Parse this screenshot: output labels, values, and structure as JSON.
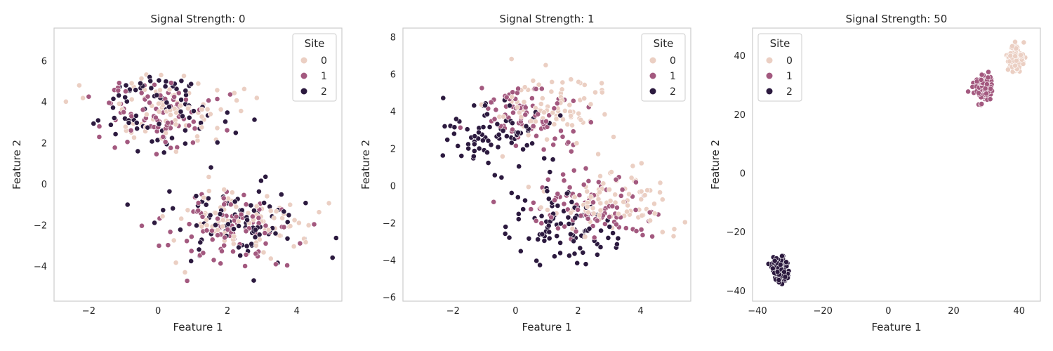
{
  "figure": {
    "legend_title": "Site",
    "site_colors": {
      "0": "#ebcfc3",
      "1": "#a3597f",
      "2": "#2c1a3f"
    },
    "grid_color": "#808080"
  },
  "chart_data": [
    {
      "type": "scatter",
      "title": "Signal Strength: 0",
      "xlabel": "Feature 1",
      "ylabel": "Feature 2",
      "xlim": [
        -3.0,
        5.3
      ],
      "ylim": [
        -5.7,
        7.6
      ],
      "xticks": [
        -2,
        0,
        2,
        4
      ],
      "yticks": [
        -4,
        -2,
        0,
        2,
        4,
        6
      ],
      "xtick_labels": [
        "−2",
        "0",
        "2",
        "4"
      ],
      "ytick_labels": [
        "−4",
        "−2",
        "0",
        "2",
        "4",
        "6"
      ],
      "grid": {
        "x": "solid-light",
        "y": "dashed"
      },
      "legend": {
        "title": "Site",
        "entries": [
          "0",
          "1",
          "2"
        ],
        "placement": "top-right"
      },
      "clusters": [
        {
          "site": "0",
          "center": [
            0.3,
            3.5
          ],
          "spread": [
            0.9,
            0.9
          ],
          "n": 80
        },
        {
          "site": "1",
          "center": [
            -0.1,
            3.3
          ],
          "spread": [
            0.9,
            0.9
          ],
          "n": 80
        },
        {
          "site": "2",
          "center": [
            0.1,
            3.6
          ],
          "spread": [
            0.9,
            0.9
          ],
          "n": 80
        },
        {
          "site": "0",
          "center": [
            2.2,
            -1.8
          ],
          "spread": [
            1.0,
            0.9
          ],
          "n": 90
        },
        {
          "site": "1",
          "center": [
            2.0,
            -2.1
          ],
          "spread": [
            1.0,
            0.9
          ],
          "n": 90
        },
        {
          "site": "2",
          "center": [
            2.1,
            -1.7
          ],
          "spread": [
            1.0,
            0.9
          ],
          "n": 90
        }
      ]
    },
    {
      "type": "scatter",
      "title": "Signal Strength: 1",
      "xlabel": "Feature 1",
      "ylabel": "Feature 2",
      "xlim": [
        -3.6,
        5.6
      ],
      "ylim": [
        -6.2,
        8.5
      ],
      "xticks": [
        -2,
        0,
        2,
        4
      ],
      "yticks": [
        -6,
        -4,
        -2,
        0,
        2,
        4,
        6,
        8
      ],
      "xtick_labels": [
        "−2",
        "0",
        "2",
        "4"
      ],
      "ytick_labels": [
        "−6",
        "−4",
        "−2",
        "0",
        "2",
        "4",
        "6",
        "8"
      ],
      "grid": {
        "x": "solid-light",
        "y": "dashed"
      },
      "legend": {
        "title": "Site",
        "entries": [
          "0",
          "1",
          "2"
        ],
        "placement": "top-right"
      },
      "clusters": [
        {
          "site": "0",
          "center": [
            1.2,
            4.3
          ],
          "spread": [
            0.9,
            0.9
          ],
          "n": 80
        },
        {
          "site": "1",
          "center": [
            0.3,
            3.7
          ],
          "spread": [
            0.9,
            0.9
          ],
          "n": 80
        },
        {
          "site": "2",
          "center": [
            -0.8,
            2.8
          ],
          "spread": [
            0.9,
            1.0
          ],
          "n": 80
        },
        {
          "site": "0",
          "center": [
            3.1,
            -0.8
          ],
          "spread": [
            1.0,
            0.8
          ],
          "n": 90
        },
        {
          "site": "1",
          "center": [
            2.5,
            -1.3
          ],
          "spread": [
            1.0,
            0.9
          ],
          "n": 90
        },
        {
          "site": "2",
          "center": [
            1.4,
            -2.3
          ],
          "spread": [
            1.0,
            1.0
          ],
          "n": 90
        }
      ]
    },
    {
      "type": "scatter",
      "title": "Signal Strength: 50",
      "xlabel": "Feature 1",
      "ylabel": "Feature 2",
      "xlim": [
        -41.5,
        46.5
      ],
      "ylim": [
        -43.5,
        49.5
      ],
      "xticks": [
        -40,
        -20,
        0,
        20,
        40
      ],
      "yticks": [
        -40,
        -20,
        0,
        20,
        40
      ],
      "xtick_labels": [
        "−40",
        "−20",
        "0",
        "20",
        "40"
      ],
      "ytick_labels": [
        "−40",
        "−20",
        "0",
        "20",
        "40"
      ],
      "grid": {
        "x": "solid-light",
        "y": "dashed"
      },
      "legend": {
        "title": "Site",
        "entries": [
          "0",
          "1",
          "2"
        ],
        "placement": "top-left"
      },
      "clusters": [
        {
          "site": "0",
          "center": [
            39.0,
            39.0
          ],
          "spread": [
            1.3,
            2.2
          ],
          "n": 120
        },
        {
          "site": "1",
          "center": [
            29.0,
            29.0
          ],
          "spread": [
            1.3,
            2.2
          ],
          "n": 120
        },
        {
          "site": "2",
          "center": [
            -33.0,
            -33.0
          ],
          "spread": [
            1.3,
            2.2
          ],
          "n": 120
        }
      ]
    }
  ]
}
